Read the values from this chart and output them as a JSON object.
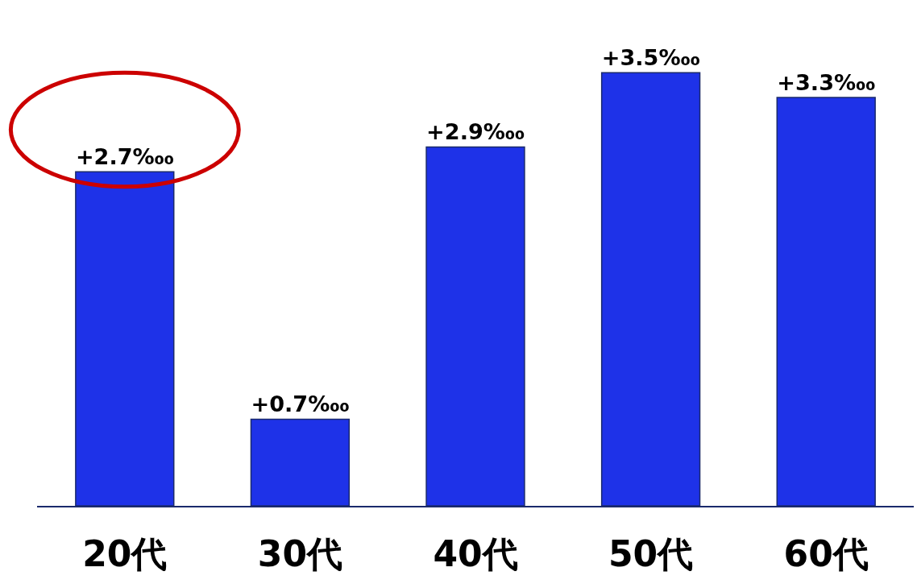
{
  "chart_data": {
    "type": "bar",
    "categories": [
      "20代",
      "30代",
      "40代",
      "50代",
      "60代"
    ],
    "values": [
      2.7,
      0.7,
      2.9,
      3.5,
      3.3
    ],
    "color": "#1e32e8",
    "value_labels": [
      "+2.7‱",
      "+0.7‱",
      "+2.9‱",
      "+3.5‱",
      "+3.3‱"
    ]
  }
}
